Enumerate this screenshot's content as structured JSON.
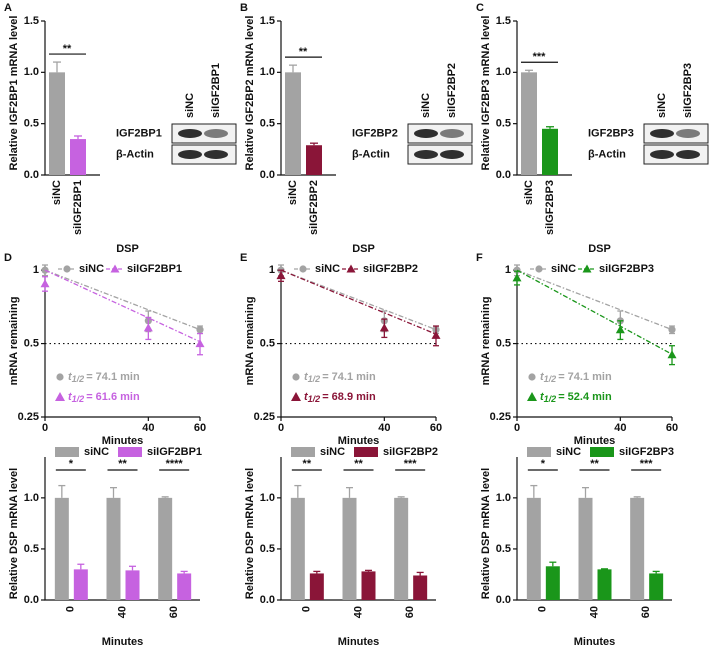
{
  "chart_data": [
    {
      "type": "bar",
      "panel": "A",
      "ylabel": "Relative IGF2BP1 mRNA level",
      "categories": [
        "siNC",
        "siIGF2BP1"
      ],
      "values": [
        1.0,
        0.35
      ],
      "errors": [
        0.1,
        0.03
      ],
      "colors": [
        "#a3a3a3",
        "#c662e0"
      ],
      "ylim": [
        0,
        1.5
      ],
      "yticks": [
        {
          "value": 0,
          "label": "0.0"
        },
        0.5,
        {
          "value": 1,
          "label": "1.0"
        },
        1.5
      ],
      "significance": "**",
      "blot": {
        "lanes": [
          "siNC",
          "siIGF2BP1"
        ],
        "proteins": [
          "IGF2BP1",
          "β-Actin"
        ]
      }
    },
    {
      "type": "bar",
      "panel": "B",
      "ylabel": "Relative IGF2BP2 mRNA level",
      "categories": [
        "siNC",
        "siIGF2BP2"
      ],
      "values": [
        1.0,
        0.29
      ],
      "errors": [
        0.07,
        0.02
      ],
      "colors": [
        "#a3a3a3",
        "#8a1538"
      ],
      "ylim": [
        0,
        1.5
      ],
      "yticks": [
        {
          "value": 0,
          "label": "0.0"
        },
        0.5,
        {
          "value": 1,
          "label": "1.0"
        },
        1.5
      ],
      "significance": "**",
      "blot": {
        "lanes": [
          "siNC",
          "siIGF2BP2"
        ],
        "proteins": [
          "IGF2BP2",
          "β-Actin"
        ]
      }
    },
    {
      "type": "bar",
      "panel": "C",
      "ylabel": "Relative IGF2BP3 mRNA level",
      "categories": [
        "siNC",
        "siIGF2BP3"
      ],
      "values": [
        1.0,
        0.45
      ],
      "errors": [
        0.02,
        0.02
      ],
      "colors": [
        "#a3a3a3",
        "#1a961a"
      ],
      "ylim": [
        0,
        1.5
      ],
      "yticks": [
        {
          "value": 0,
          "label": "0.0"
        },
        0.5,
        {
          "value": 1,
          "label": "1.0"
        },
        1.5
      ],
      "significance": "***",
      "blot": {
        "lanes": [
          "siNC",
          "siIGF2BP3"
        ],
        "proteins": [
          "IGF2BP3",
          "β-Actin"
        ]
      }
    },
    {
      "type": "line",
      "panel": "D",
      "title": "DSP",
      "xlabel": "Minutes",
      "ylabel": "mRNA remaining",
      "log_scale": true,
      "x": [
        0,
        40,
        60
      ],
      "xlim": [
        0,
        60
      ],
      "xticks": [
        0,
        40,
        60
      ],
      "ylim": [
        0.25,
        1.05
      ],
      "yticks": [
        0.25,
        0.5,
        1
      ],
      "reference_line": 0.5,
      "annotation_symbol": "t",
      "annotation_subscript": "1/2",
      "series": [
        {
          "name": "siNC",
          "color": "#a3a3a3",
          "marker": "circle",
          "values": [
            1.0,
            0.62,
            0.57
          ],
          "errors": [
            0.05,
            0.06,
            0.02
          ],
          "half_life": 74.1,
          "half_life_label": "= 74.1 min"
        },
        {
          "name": "siIGF2BP1",
          "color": "#c662e0",
          "marker": "triangle",
          "values": [
            0.88,
            0.58,
            0.5
          ],
          "errors": [
            0.06,
            0.06,
            0.05
          ],
          "half_life": 61.6,
          "half_life_label": "= 61.6 min"
        }
      ]
    },
    {
      "type": "line",
      "panel": "E",
      "title": "DSP",
      "xlabel": "Minutes",
      "ylabel": "mRNA remaining",
      "log_scale": true,
      "x": [
        0,
        40,
        60
      ],
      "xlim": [
        0,
        60
      ],
      "xticks": [
        0,
        40,
        60
      ],
      "ylim": [
        0.25,
        1.05
      ],
      "yticks": [
        0.25,
        0.5,
        1
      ],
      "reference_line": 0.5,
      "annotation_symbol": "t",
      "annotation_subscript": "1/2",
      "series": [
        {
          "name": "siNC",
          "color": "#a3a3a3",
          "marker": "circle",
          "values": [
            1.0,
            0.62,
            0.57
          ],
          "errors": [
            0.05,
            0.06,
            0.02
          ],
          "half_life": 74.1,
          "half_life_label": "= 74.1 min"
        },
        {
          "name": "siIGF2BP2",
          "color": "#8a1538",
          "marker": "triangle",
          "values": [
            0.95,
            0.58,
            0.54
          ],
          "errors": [
            0.05,
            0.05,
            0.05
          ],
          "half_life": 68.9,
          "half_life_label": "= 68.9 min"
        }
      ]
    },
    {
      "type": "line",
      "panel": "F",
      "title": "DSP",
      "xlabel": "Minutes",
      "ylabel": "mRNA remaining",
      "log_scale": true,
      "x": [
        0,
        40,
        60
      ],
      "xlim": [
        0,
        60
      ],
      "xticks": [
        0,
        40,
        60
      ],
      "ylim": [
        0.25,
        1.05
      ],
      "yticks": [
        0.25,
        0.5,
        1
      ],
      "reference_line": 0.5,
      "annotation_symbol": "t",
      "annotation_subscript": "1/2",
      "series": [
        {
          "name": "siNC",
          "color": "#a3a3a3",
          "marker": "circle",
          "values": [
            1.0,
            0.62,
            0.57
          ],
          "errors": [
            0.05,
            0.06,
            0.02
          ],
          "half_life": 74.1,
          "half_life_label": "= 74.1 min"
        },
        {
          "name": "siIGF2BP3",
          "color": "#1a961a",
          "marker": "triangle",
          "values": [
            0.93,
            0.57,
            0.45
          ],
          "errors": [
            0.06,
            0.05,
            0.04
          ],
          "half_life": 52.4,
          "half_life_label": "= 52.4 min"
        }
      ]
    },
    {
      "type": "bar",
      "ylabel": "Relative DSP mRNA level",
      "xlabel": "Minutes",
      "categories": [
        "0",
        "40",
        "60"
      ],
      "ylim": [
        0,
        1.4
      ],
      "yticks": [
        {
          "value": 0,
          "label": "0.0"
        },
        0.5,
        {
          "value": 1,
          "label": "1.0"
        }
      ],
      "significance": [
        "*",
        "**",
        "****"
      ],
      "series": [
        {
          "name": "siNC",
          "color": "#a3a3a3",
          "values": [
            1.0,
            1.0,
            1.0
          ],
          "errors": [
            0.12,
            0.1,
            0.01
          ]
        },
        {
          "name": "siIGF2BP1",
          "color": "#c662e0",
          "values": [
            0.3,
            0.29,
            0.26
          ],
          "errors": [
            0.05,
            0.04,
            0.02
          ]
        }
      ]
    },
    {
      "type": "bar",
      "ylabel": "Relative DSP mRNA level",
      "xlabel": "Minutes",
      "categories": [
        "0",
        "40",
        "60"
      ],
      "ylim": [
        0,
        1.4
      ],
      "yticks": [
        {
          "value": 0,
          "label": "0.0"
        },
        0.5,
        {
          "value": 1,
          "label": "1.0"
        }
      ],
      "significance": [
        "**",
        "**",
        "***"
      ],
      "series": [
        {
          "name": "siNC",
          "color": "#a3a3a3",
          "values": [
            1.0,
            1.0,
            1.0
          ],
          "errors": [
            0.12,
            0.1,
            0.01
          ]
        },
        {
          "name": "siIGF2BP2",
          "color": "#8a1538",
          "values": [
            0.26,
            0.28,
            0.24
          ],
          "errors": [
            0.02,
            0.01,
            0.03
          ]
        }
      ]
    },
    {
      "type": "bar",
      "ylabel": "Relative DSP mRNA level",
      "xlabel": "Minutes",
      "categories": [
        "0",
        "40",
        "60"
      ],
      "ylim": [
        0,
        1.4
      ],
      "yticks": [
        {
          "value": 0,
          "label": "0.0"
        },
        0.5,
        {
          "value": 1,
          "label": "1.0"
        }
      ],
      "significance": [
        "*",
        "**",
        "***"
      ],
      "series": [
        {
          "name": "siNC",
          "color": "#a3a3a3",
          "values": [
            1.0,
            1.0,
            1.0
          ],
          "errors": [
            0.12,
            0.1,
            0.01
          ]
        },
        {
          "name": "siIGF2BP3",
          "color": "#1a961a",
          "values": [
            0.33,
            0.3,
            0.26
          ],
          "errors": [
            0.04,
            0.005,
            0.02
          ]
        }
      ]
    }
  ]
}
